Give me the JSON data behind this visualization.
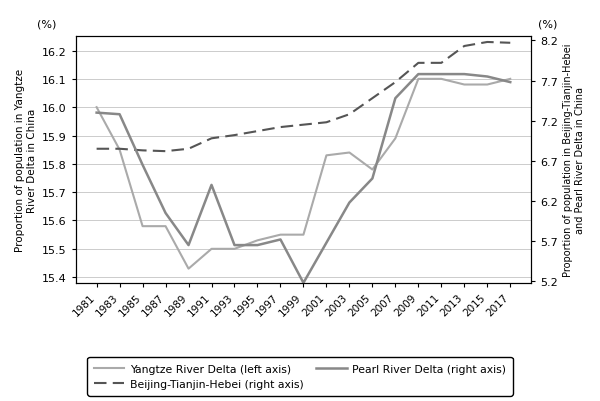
{
  "years": [
    1981,
    1983,
    1985,
    1987,
    1989,
    1991,
    1993,
    1995,
    1997,
    1999,
    2001,
    2003,
    2005,
    2007,
    2009,
    2011,
    2013,
    2015,
    2017
  ],
  "yangtze": [
    16.0,
    15.85,
    15.58,
    15.58,
    15.43,
    15.5,
    15.5,
    15.53,
    15.55,
    15.55,
    15.83,
    15.84,
    15.78,
    15.89,
    16.1,
    16.1,
    16.08,
    16.08,
    16.1
  ],
  "beijing": [
    6.85,
    6.85,
    6.83,
    6.82,
    6.85,
    6.98,
    7.02,
    7.07,
    7.12,
    7.15,
    7.18,
    7.28,
    7.48,
    7.68,
    7.92,
    7.92,
    8.13,
    8.18,
    8.17
  ],
  "pearl": [
    7.3,
    7.28,
    6.65,
    6.05,
    5.65,
    6.4,
    5.65,
    5.65,
    5.72,
    5.18,
    5.68,
    6.18,
    6.48,
    7.48,
    7.78,
    7.78,
    7.78,
    7.75,
    7.68
  ],
  "yangtze_color": "#aaaaaa",
  "beijing_color": "#555555",
  "pearl_color": "#888888",
  "left_ylabel": "Proportion of population in Yangtze\nRiver Delta in China",
  "right_ylabel": "Proportion of population in Beijing-Tianjin-Hebei\nand Pearl River Delta in China",
  "left_ylabel_pct": "(%)",
  "right_ylabel_pct": "(%)",
  "ylim_left": [
    15.38,
    16.25
  ],
  "ylim_right": [
    5.18,
    8.25
  ],
  "yticks_left": [
    15.4,
    15.5,
    15.6,
    15.7,
    15.8,
    15.9,
    16.0,
    16.1,
    16.2
  ],
  "yticks_right": [
    5.2,
    5.7,
    6.2,
    6.7,
    7.2,
    7.7,
    8.2
  ],
  "legend_yangtze": "Yangtze River Delta (left axis)",
  "legend_beijing": "Beijing-Tianjin-Hebei (right axis)",
  "legend_pearl": "Pearl River Delta (right axis)",
  "background_color": "#ffffff"
}
